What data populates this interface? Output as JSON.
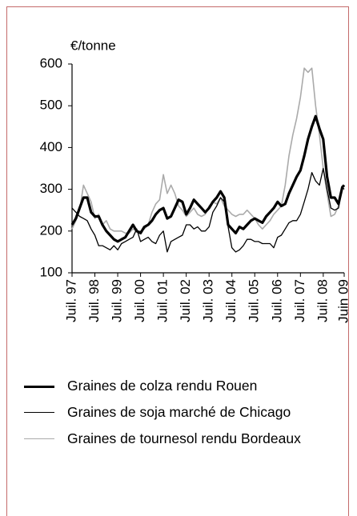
{
  "chart_data": {
    "type": "line",
    "ylabel": "€/tonne",
    "x": [
      "1997-07",
      "1997-09",
      "1997-11",
      "1998-01",
      "1998-03",
      "1998-05",
      "1998-07",
      "1998-09",
      "1998-11",
      "1999-01",
      "1999-03",
      "1999-05",
      "1999-07",
      "1999-09",
      "1999-11",
      "2000-01",
      "2000-03",
      "2000-05",
      "2000-07",
      "2000-09",
      "2000-11",
      "2001-01",
      "2001-03",
      "2001-05",
      "2001-07",
      "2001-09",
      "2001-11",
      "2002-01",
      "2002-03",
      "2002-05",
      "2002-07",
      "2002-09",
      "2002-11",
      "2003-01",
      "2003-03",
      "2003-05",
      "2003-07",
      "2003-09",
      "2003-11",
      "2004-01",
      "2004-03",
      "2004-05",
      "2004-07",
      "2004-09",
      "2004-11",
      "2005-01",
      "2005-03",
      "2005-05",
      "2005-07",
      "2005-09",
      "2005-11",
      "2006-01",
      "2006-03",
      "2006-05",
      "2006-07",
      "2006-09",
      "2006-11",
      "2007-01",
      "2007-03",
      "2007-05",
      "2007-07",
      "2007-09",
      "2007-11",
      "2008-01",
      "2008-03",
      "2008-05",
      "2008-07",
      "2008-09",
      "2008-11",
      "2009-01",
      "2009-03",
      "2009-05",
      "2009-06"
    ],
    "series": [
      {
        "name": "Graines de colza rendu Rouen",
        "color": "#000000",
        "values": [
          215,
          230,
          255,
          280,
          280,
          245,
          235,
          235,
          215,
          200,
          190,
          180,
          175,
          180,
          185,
          200,
          215,
          200,
          195,
          210,
          215,
          225,
          240,
          250,
          255,
          230,
          235,
          255,
          275,
          270,
          240,
          255,
          275,
          265,
          255,
          245,
          255,
          270,
          280,
          295,
          280,
          215,
          205,
          195,
          210,
          205,
          215,
          225,
          230,
          225,
          220,
          235,
          245,
          255,
          270,
          260,
          265,
          290,
          310,
          330,
          345,
          380,
          420,
          450,
          475,
          445,
          420,
          330,
          280,
          280,
          265,
          305,
          310
        ]
      },
      {
        "name": "Graines de soja marché de Chicago",
        "color": "#000000",
        "values": [
          255,
          245,
          235,
          230,
          225,
          205,
          190,
          165,
          165,
          160,
          155,
          165,
          155,
          170,
          175,
          180,
          185,
          205,
          175,
          180,
          185,
          175,
          170,
          190,
          200,
          150,
          175,
          180,
          185,
          190,
          215,
          215,
          205,
          210,
          200,
          200,
          210,
          245,
          260,
          280,
          270,
          210,
          160,
          150,
          155,
          165,
          180,
          180,
          175,
          175,
          170,
          170,
          170,
          160,
          185,
          190,
          205,
          220,
          225,
          225,
          240,
          270,
          300,
          340,
          320,
          310,
          350,
          300,
          255,
          250,
          255,
          305,
          300
        ]
      },
      {
        "name": "Graines de tournesol rendu Bordeaux",
        "color": "#aaaaaa",
        "values": [
          205,
          225,
          250,
          310,
          290,
          270,
          230,
          240,
          215,
          225,
          205,
          200,
          200,
          200,
          195,
          195,
          205,
          200,
          200,
          205,
          215,
          245,
          265,
          275,
          335,
          290,
          310,
          290,
          260,
          250,
          235,
          245,
          255,
          240,
          235,
          240,
          260,
          270,
          265,
          280,
          260,
          250,
          240,
          235,
          240,
          240,
          250,
          240,
          230,
          215,
          205,
          215,
          225,
          240,
          250,
          260,
          310,
          380,
          430,
          470,
          520,
          590,
          580,
          590,
          500,
          430,
          350,
          290,
          235,
          240,
          260,
          300,
          310
        ]
      }
    ],
    "xlim": [
      "1997-07",
      "2009-06"
    ],
    "xticks": [
      {
        "value": "1997-07",
        "label": "Juil. 97"
      },
      {
        "value": "1998-07",
        "label": "Juil. 98"
      },
      {
        "value": "1999-07",
        "label": "Juil. 99"
      },
      {
        "value": "2000-07",
        "label": "Juil. 00"
      },
      {
        "value": "2001-07",
        "label": "Juil. 01"
      },
      {
        "value": "2002-07",
        "label": "Juil. 02"
      },
      {
        "value": "2003-07",
        "label": "Juil. 03"
      },
      {
        "value": "2004-07",
        "label": "Juil. 04"
      },
      {
        "value": "2005-07",
        "label": "Juil. 05"
      },
      {
        "value": "2006-07",
        "label": "Juil. 06"
      },
      {
        "value": "2007-07",
        "label": "Juil. 07"
      },
      {
        "value": "2008-07",
        "label": "Juil. 08"
      },
      {
        "value": "2009-06",
        "label": "Juin 09"
      }
    ],
    "ylim": [
      100,
      600
    ],
    "yticks": [
      100,
      200,
      300,
      400,
      500,
      600
    ]
  }
}
